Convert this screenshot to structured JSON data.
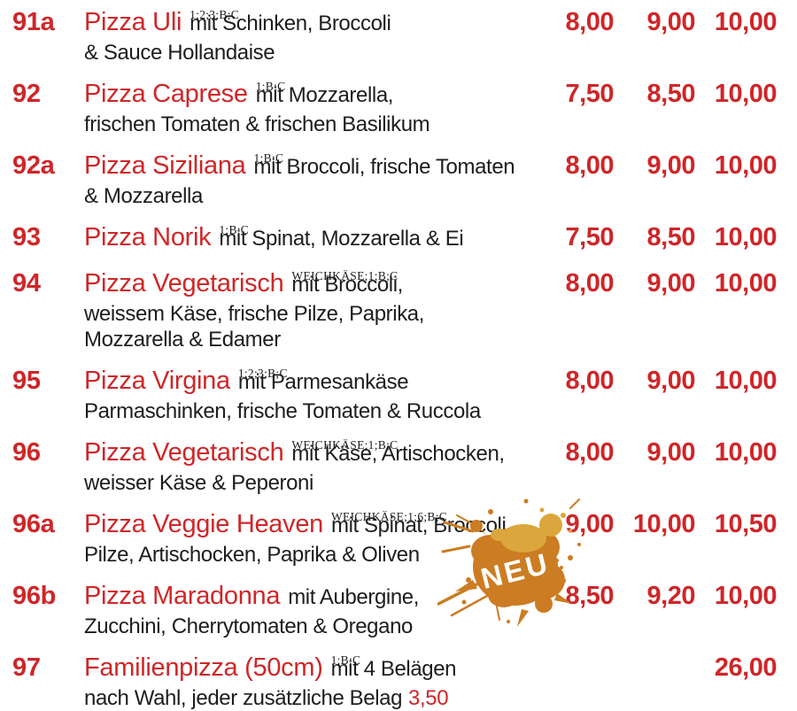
{
  "colors": {
    "accent_red": "#cf2628",
    "text_black": "#1e1d1b",
    "splat_orange": "#cc7c22",
    "splat_gold": "#dba63c",
    "badge_text": "#ffffff"
  },
  "badge": {
    "label": "NEU"
  },
  "menu": {
    "items": [
      {
        "num": "91a",
        "name": "Pizza Uli",
        "sup": "1;2;3;B;C",
        "desc1": "mit Schinken, Broccoli",
        "desc_lines": [
          "& Sauce Hollandaise"
        ],
        "prices": [
          "8,00",
          "9,00",
          "10,00"
        ]
      },
      {
        "num": "92",
        "name": "Pizza Caprese",
        "sup": "1;B;C",
        "desc1": "mit Mozzarella,",
        "desc_lines": [
          "frischen Tomaten & frischen Basilikum"
        ],
        "prices": [
          "7,50",
          "8,50",
          "10,00"
        ]
      },
      {
        "num": "92a",
        "name": "Pizza Siziliana",
        "sup": "1;B;C",
        "desc1": "mit Broccoli, frische Tomaten",
        "desc_lines": [
          "& Mozzarella"
        ],
        "prices": [
          "8,00",
          "9,00",
          "10,00"
        ]
      },
      {
        "num": "93",
        "name": "Pizza Norik",
        "sup": "1;B;C",
        "desc1": "mit Spinat, Mozzarella & Ei",
        "desc_lines": [],
        "prices": [
          "7,50",
          "8,50",
          "10,00"
        ]
      },
      {
        "num": "94",
        "name": "Pizza Vegetarisch",
        "sup": "WEICHKÄSE;1;B;C",
        "desc1": "mit Broccoli,",
        "desc_lines": [
          "weissem Käse, frische Pilze, Paprika,",
          "Mozzarella & Edamer"
        ],
        "prices": [
          "8,00",
          "9,00",
          "10,00"
        ]
      },
      {
        "num": "95",
        "name": "Pizza Virgina",
        "sup": "1;2;3;B;C",
        "desc1": "mit Parmesankäse",
        "desc_lines": [
          "Parmaschinken, frische Tomaten & Ruccola"
        ],
        "prices": [
          "8,00",
          "9,00",
          "10,00"
        ]
      },
      {
        "num": "96",
        "name": "Pizza Vegetarisch",
        "sup": "WEICHKÄSE;1;B;C",
        "desc1": "mit Käse, Artischocken,",
        "desc_lines": [
          "weisser Käse & Peperoni"
        ],
        "prices": [
          "8,00",
          "9,00",
          "10,00"
        ]
      },
      {
        "num": "96a",
        "name": "Pizza Veggie Heaven",
        "sup": "WEICHKÄSE;1;6;B;C",
        "desc1": "mit Spinat, Broccoli,",
        "desc_lines": [
          "Pilze, Artischocken, Paprika & Oliven"
        ],
        "prices": [
          "9,00",
          "10,00",
          "10,50"
        ]
      },
      {
        "num": "96b",
        "name": "Pizza Maradonna",
        "sup": "",
        "desc1": "mit Aubergine,",
        "desc_lines": [
          "Zucchini, Cherrytomaten & Oregano"
        ],
        "prices": [
          "8,50",
          "9,20",
          "10,00"
        ]
      },
      {
        "num": "97",
        "name": "Familienpizza (50cm)",
        "sup": "1;B;C",
        "desc1": "mit 4 Belägen",
        "desc_lines": [
          "nach Wahl, jeder zusätzliche Belag"
        ],
        "extra_red": "3,50",
        "prices": [
          "",
          "",
          "26,00"
        ]
      }
    ]
  }
}
